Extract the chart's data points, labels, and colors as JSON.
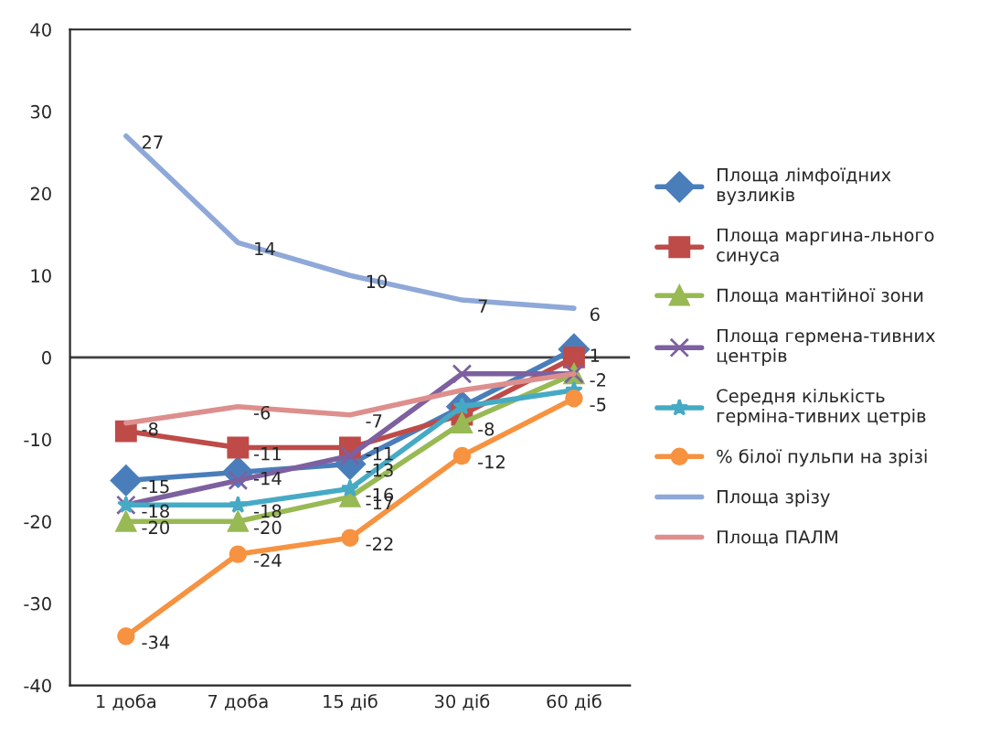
{
  "chart_data": {
    "type": "line",
    "categories": [
      "1 доба",
      "7 доба",
      "15 діб",
      "30 діб",
      "60 діб"
    ],
    "ylim": [
      -40,
      40
    ],
    "yticks": [
      -40,
      -30,
      -20,
      -10,
      0,
      10,
      20,
      30,
      40
    ],
    "legend": "right",
    "grid": false,
    "ref_lines": [
      {
        "axis": "y",
        "value": 0,
        "color": "#404040"
      }
    ],
    "series": [
      {
        "name": "Площа лімфоїдних вузликів",
        "color": "#4a7ebb",
        "marker": "diamond",
        "values": [
          -15,
          -14,
          -13,
          -6,
          1
        ],
        "value_labels": [
          "-15",
          "-14",
          "-13",
          null,
          "1"
        ]
      },
      {
        "name": "Площа маргина-льного синуса",
        "color": "#be4b48",
        "marker": "square",
        "values": [
          -9,
          -11,
          -11,
          -7,
          0
        ],
        "value_labels": [
          null,
          "-11",
          "-11",
          null,
          null
        ]
      },
      {
        "name": "Площа мантійної зони",
        "color": "#98b954",
        "marker": "triangle",
        "values": [
          -20,
          -20,
          -17,
          -8,
          -2
        ],
        "value_labels": [
          "-20",
          "-20",
          "-17",
          "-8",
          "-2"
        ]
      },
      {
        "name": "Площа гермена-тивних центрів",
        "color": "#7d60a0",
        "marker": "cross",
        "values": [
          -18,
          -15,
          -12,
          -2,
          -2
        ]
      },
      {
        "name": "Середня кількість гермiна-тивних цетрів",
        "color": "#46aac5",
        "marker": "star",
        "values": [
          -18,
          -18,
          -16,
          -6,
          -4
        ],
        "value_labels": [
          "-18",
          "-18",
          "-16",
          null,
          null
        ]
      },
      {
        "name": "% білої пульпи на зрізі",
        "color": "#f69240",
        "marker": "circle",
        "values": [
          -34,
          -24,
          -22,
          -12,
          -5
        ],
        "value_labels": [
          "-34",
          "-24",
          "-22",
          "-12",
          "-5"
        ]
      },
      {
        "name": "Площа зрізу",
        "color": "#8ea8d8",
        "marker": "none",
        "values": [
          27,
          14,
          10,
          7,
          6
        ],
        "value_labels": [
          "27",
          "14",
          "10",
          "7",
          "6"
        ]
      },
      {
        "name": "Площа ПАЛМ",
        "color": "#dd8f8d",
        "marker": "none",
        "values": [
          -8,
          -6,
          -7,
          -4,
          -2
        ],
        "value_labels": [
          "-8",
          "-6",
          "-7",
          null,
          null
        ]
      }
    ]
  }
}
